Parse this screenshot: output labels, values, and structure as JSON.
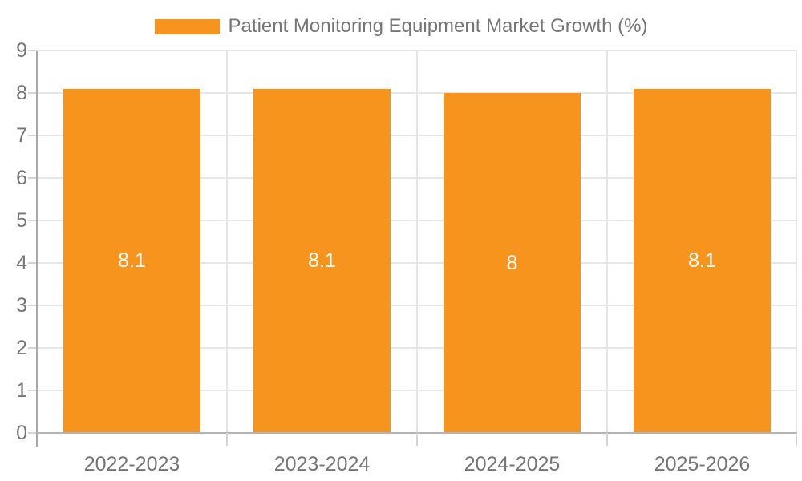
{
  "chart_data": {
    "type": "bar",
    "title": "Patient Monitoring Equipment Market Growth (%)",
    "categories": [
      "2022-2023",
      "2023-2024",
      "2024-2025",
      "2025-2026"
    ],
    "values": [
      8.1,
      8.1,
      8,
      8.1
    ],
    "value_labels": [
      "8.1",
      "8.1",
      "8",
      "8.1"
    ],
    "xlabel": "",
    "ylabel": "",
    "ylim": [
      0,
      9
    ],
    "y_ticks": [
      0,
      1,
      2,
      3,
      4,
      5,
      6,
      7,
      8,
      9
    ],
    "grid": true,
    "legend_position": "top-center",
    "bar_color": "#f7941e",
    "bar_value_text_color": "#ffffff",
    "axis_text_color": "#757575",
    "gridline_color": "#e6e6e6",
    "axis_line_color": "#a8a8a8",
    "tick_color": "#d4d4d4"
  },
  "legend": {
    "label": "Patient Monitoring Equipment Market Growth (%)",
    "swatch_color": "#f7941e"
  }
}
